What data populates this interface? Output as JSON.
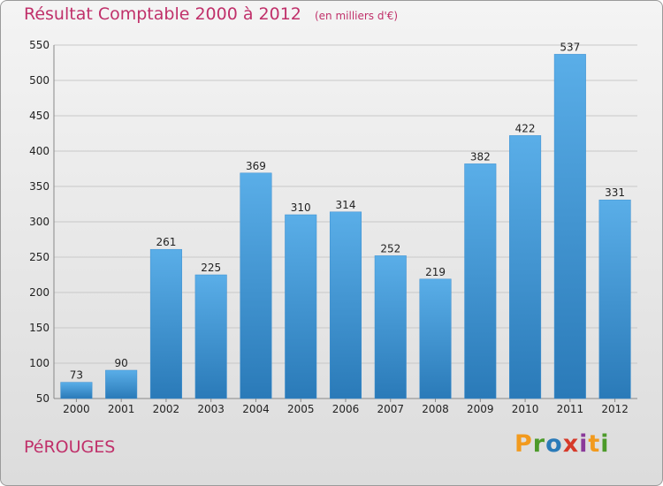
{
  "chart_data": {
    "type": "bar",
    "title": "Résultat Comptable 2000 à 2012",
    "subtitle": "(en milliers d'€)",
    "categories": [
      "2000",
      "2001",
      "2002",
      "2003",
      "2004",
      "2005",
      "2006",
      "2007",
      "2008",
      "2009",
      "2010",
      "2011",
      "2012"
    ],
    "values": [
      73,
      90,
      261,
      225,
      369,
      310,
      314,
      252,
      219,
      382,
      422,
      537,
      331
    ],
    "ylim": [
      50,
      550
    ],
    "yticks": [
      50,
      100,
      150,
      200,
      250,
      300,
      350,
      400,
      450,
      500,
      550
    ],
    "grid": true,
    "bar_color_top": "#5aaee8",
    "bar_color_bottom": "#2a7ab8"
  },
  "footer": {
    "place": "PéROUGES",
    "logo": [
      "P",
      "r",
      "o",
      "x",
      "i",
      "t",
      "i"
    ]
  }
}
